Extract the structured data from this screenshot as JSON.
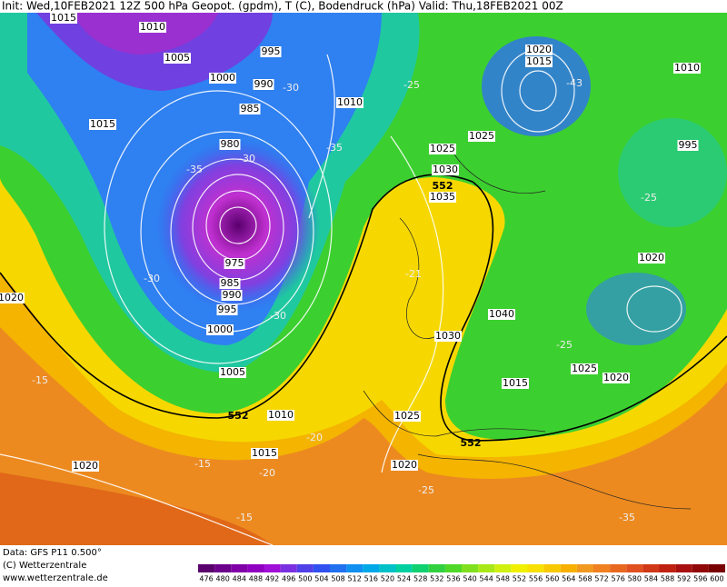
{
  "header": {
    "title": "Init: Wed,10FEB2021 12Z 500 hPa Geopot. (gpdm), T (C), Bodendruck (hPa) Valid: Thu,18FEB2021 00Z"
  },
  "map": {
    "labels": [
      "1015",
      "1010",
      "1005",
      "1000",
      "995",
      "990",
      "985",
      "980",
      "975",
      "985",
      "990",
      "995",
      "1000",
      "1005",
      "1010",
      "1015",
      "1020",
      "1020",
      "1015",
      "1010",
      "1025",
      "1030",
      "1035",
      "1040",
      "1030",
      "1025",
      "1020",
      "1015",
      "1025",
      "1020",
      "1010",
      "995",
      "1020",
      "1015",
      "1025",
      "1020",
      "-30",
      "-25",
      "-35",
      "-43",
      "-30",
      "-35",
      "-25",
      "-15",
      "-20",
      "-15",
      "-20",
      "-15",
      "-25",
      "-35",
      "-30",
      "-30",
      "-25",
      "552",
      "552",
      "552",
      "-21"
    ]
  },
  "footer": {
    "data": "Data: GFS P11 0.500°",
    "copyright": "(C) Wetterzentrale",
    "url": "www.wetterzentrale.de"
  },
  "colorbar": {
    "ticks": [
      476,
      480,
      484,
      488,
      492,
      496,
      500,
      504,
      508,
      512,
      516,
      520,
      524,
      528,
      532,
      536,
      540,
      544,
      548,
      552,
      556,
      560,
      564,
      568,
      572,
      576,
      580,
      584,
      588,
      592,
      596,
      600
    ],
    "colors": [
      "#5a006e",
      "#6c008a",
      "#8000a8",
      "#9000c0",
      "#a010d8",
      "#7a30e0",
      "#5040e8",
      "#3050f0",
      "#2070f0",
      "#1090f0",
      "#00a8e8",
      "#00c0c8",
      "#00d0a0",
      "#10d070",
      "#30d040",
      "#50d828",
      "#80e020",
      "#a8e818",
      "#d0f010",
      "#f0f000",
      "#f8e000",
      "#f8c800",
      "#f8b000",
      "#f09820",
      "#f08020",
      "#e86820",
      "#e05020",
      "#d03818",
      "#c02010",
      "#a81010",
      "#900808",
      "#780000"
    ]
  }
}
